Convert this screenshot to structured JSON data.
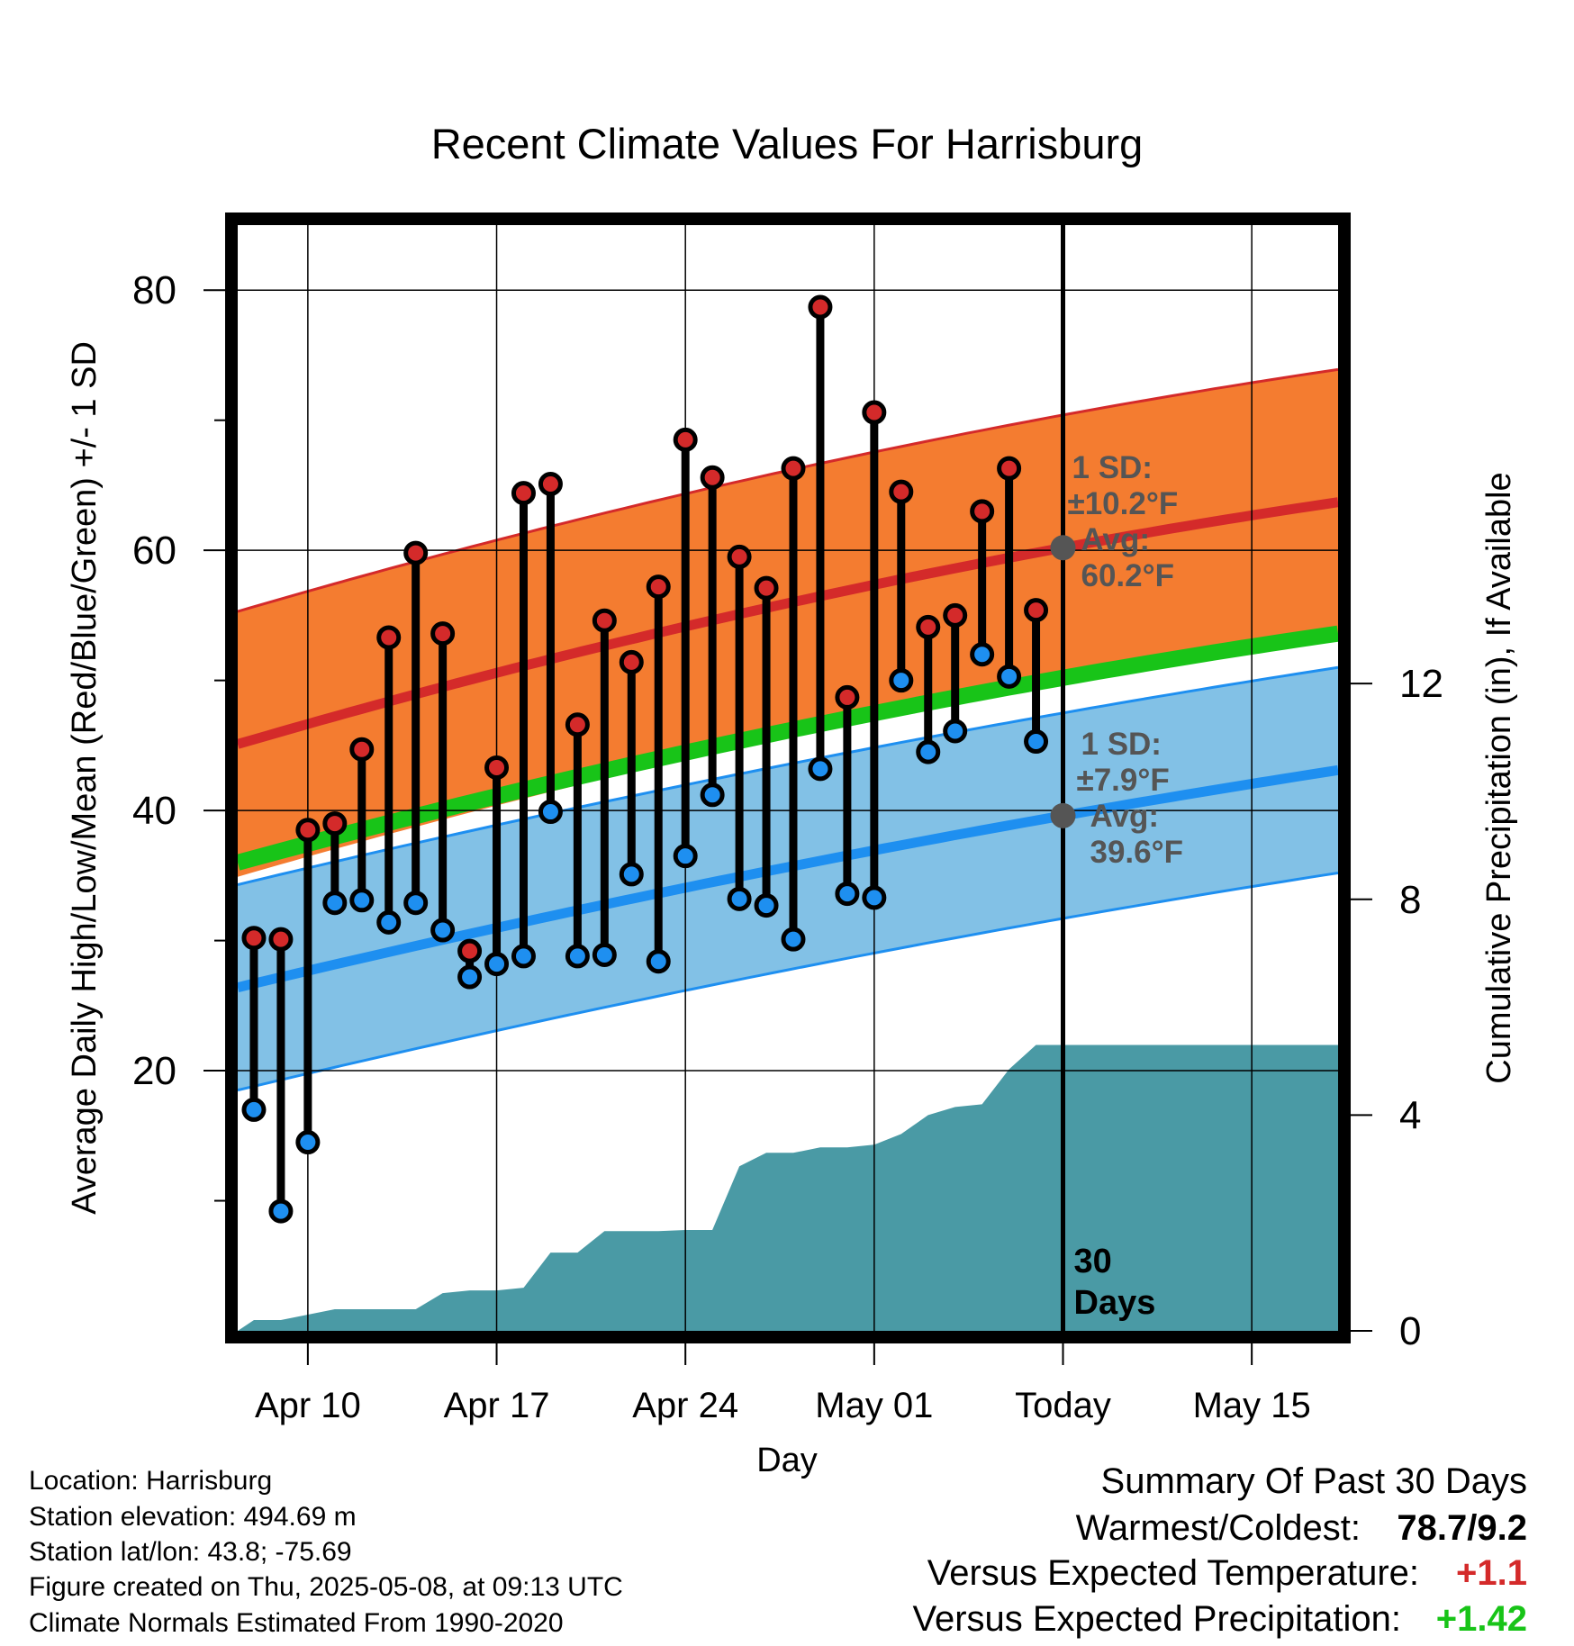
{
  "chart_data": {
    "type": "line",
    "title": "Recent Climate Values For Harrisburg",
    "xlabel": "Day",
    "ylabel": "Average Daily High/Low/Mean (Red/Blue/Green) +/- 1 SD",
    "y2label": "Cumulative Precipitation (in), If Available",
    "ylim": [
      0,
      85
    ],
    "y2lim": [
      0,
      20.5
    ],
    "yticks": [
      "20",
      "40",
      "60",
      "80"
    ],
    "y2ticks": [
      "0",
      "4",
      "8",
      "12"
    ],
    "xlim": [
      -2.6,
      38.2
    ],
    "xticks": [
      {
        "x": 0,
        "label": "Apr 10"
      },
      {
        "x": 7,
        "label": "Apr 17"
      },
      {
        "x": 14,
        "label": "Apr 24"
      },
      {
        "x": 21,
        "label": "May 01"
      },
      {
        "x": 28,
        "label": "Today"
      },
      {
        "x": 35,
        "label": "May 15"
      }
    ],
    "days": [
      -2,
      -1,
      0,
      1,
      2,
      3,
      4,
      5,
      6,
      7,
      8,
      9,
      10,
      11,
      12,
      13,
      14,
      15,
      16,
      17,
      18,
      19,
      20,
      21,
      22,
      23,
      24,
      25,
      26,
      27
    ],
    "highs": [
      30.2,
      30.1,
      38.5,
      39.0,
      44.7,
      53.3,
      59.8,
      53.6,
      29.2,
      43.3,
      64.4,
      65.1,
      46.6,
      54.6,
      51.4,
      57.2,
      68.5,
      65.6,
      59.5,
      57.1,
      66.3,
      78.7,
      48.7,
      70.6,
      64.5,
      54.1,
      55.0,
      63.0,
      66.3,
      55.4
    ],
    "lows": [
      17.0,
      9.2,
      14.5,
      32.9,
      33.1,
      31.4,
      32.9,
      30.8,
      27.2,
      28.2,
      28.8,
      39.9,
      28.8,
      28.9,
      35.1,
      28.4,
      36.5,
      41.2,
      33.2,
      32.7,
      30.1,
      43.2,
      33.6,
      33.3,
      50.0,
      44.5,
      46.1,
      52.0,
      50.3,
      45.3
    ],
    "normals": {
      "x": [
        -2.6,
        28,
        38.2
      ],
      "high_mean": [
        45.1,
        60.2,
        63.7
      ],
      "high_sd": 10.2,
      "low_mean": [
        26.4,
        39.6,
        43.1
      ],
      "low_sd": 7.9,
      "mean": [
        36.0,
        50.2,
        53.6
      ]
    },
    "precip": {
      "x": [
        -2.6,
        -2,
        -1,
        0,
        1,
        2,
        3,
        4,
        5,
        6,
        7,
        8,
        9,
        10,
        11,
        12,
        13,
        14,
        15,
        16,
        17,
        18,
        19,
        20,
        21,
        22,
        23,
        24,
        25,
        26,
        27,
        28,
        38.2
      ],
      "cum": [
        0.0,
        0.2,
        0.2,
        0.3,
        0.4,
        0.4,
        0.4,
        0.4,
        0.7,
        0.75,
        0.75,
        0.8,
        1.45,
        1.45,
        1.85,
        1.85,
        1.85,
        1.87,
        1.87,
        3.05,
        3.3,
        3.3,
        3.4,
        3.4,
        3.45,
        3.65,
        4.0,
        4.15,
        4.2,
        4.85,
        5.3,
        5.3,
        5.3
      ]
    },
    "today": {
      "label": "Today",
      "high_label": [
        "1 SD:",
        "±10.2°F",
        "Avg:",
        "60.2°F"
      ],
      "low_label": [
        "1 SD:",
        "±7.9°F",
        "Avg:",
        "39.6°F"
      ],
      "window_label": [
        "30",
        "Days"
      ]
    },
    "colors": {
      "high_band": "#f47c30",
      "high_line": "#d42a2a",
      "low_band": "#82c1e6",
      "low_line": "#1e8ff0",
      "mean_line": "#18c418",
      "precip": "#4a9aa5",
      "annotation": "#555555"
    }
  },
  "info": {
    "location": "Location: Harrisburg",
    "elevation": "Station elevation: 494.69 m",
    "latlon": "Station lat/lon: 43.8; -75.69",
    "created": "Figure created on Thu, 2025-05-08, at 09:13 UTC",
    "normals": "Climate Normals Estimated From 1990-2020"
  },
  "summary": {
    "title": "Summary Of Past 30 Days",
    "warmest_label": "Warmest/Coldest:",
    "warmest_value": "78.7/9.2",
    "temp_label": "Versus Expected Temperature:",
    "temp_value": "+1.1",
    "temp_color": "#d42a2a",
    "precip_label": "Versus Expected Precipitation:",
    "precip_value": "+1.42",
    "precip_color": "#18c418"
  }
}
